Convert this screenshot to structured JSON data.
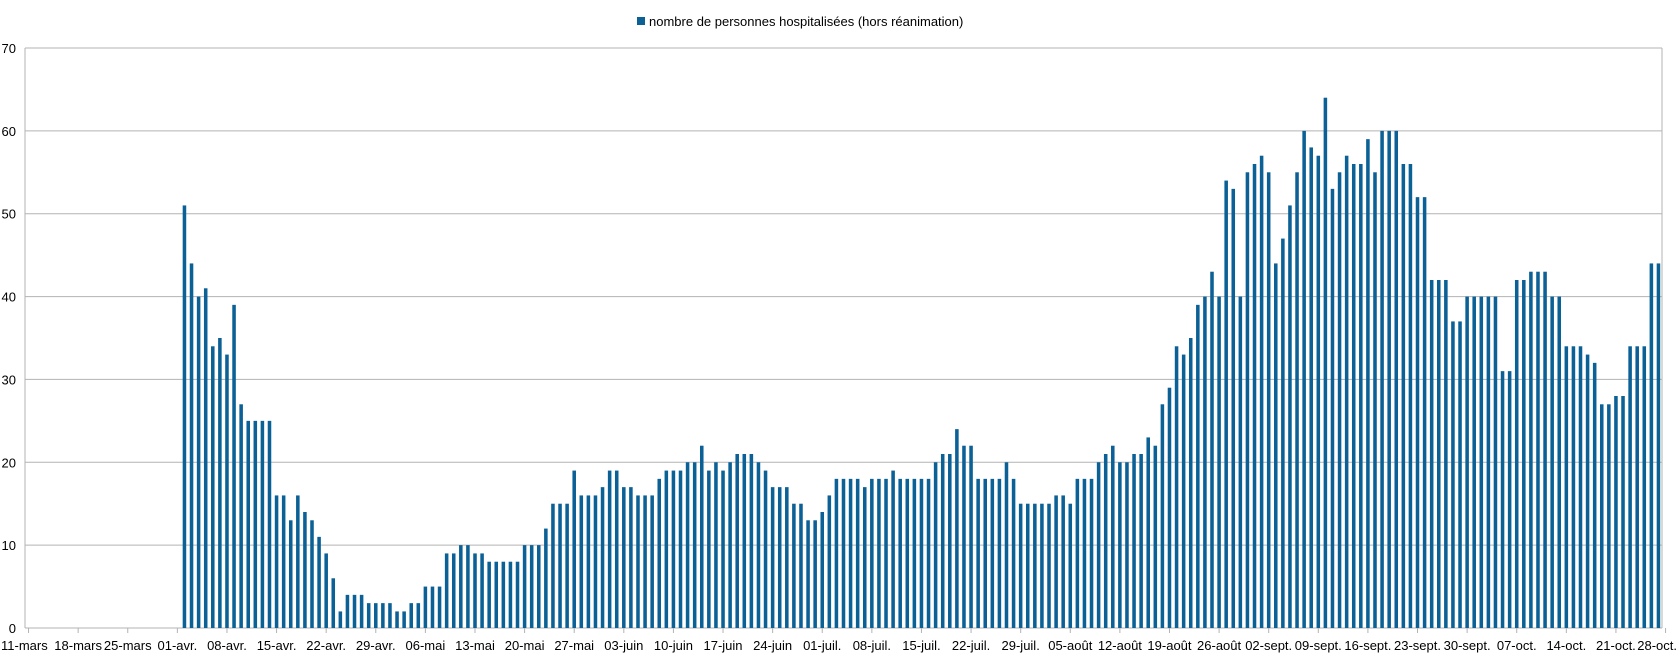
{
  "chart_data": {
    "type": "bar",
    "title": "",
    "xlabel": "",
    "ylabel": "",
    "legend": {
      "position": "top-center"
    },
    "ylim": [
      0,
      70
    ],
    "yticks": [
      0,
      10,
      20,
      30,
      40,
      50,
      60,
      70
    ],
    "grid": true,
    "x_start": "11-mars",
    "x_end": "29-oct.",
    "x_tick_labels": [
      "11-mars",
      "18-mars",
      "25-mars",
      "01-avr.",
      "08-avr.",
      "15-avr.",
      "22-avr.",
      "29-avr.",
      "06-mai",
      "13-mai",
      "20-mai",
      "27-mai",
      "03-juin",
      "10-juin",
      "17-juin",
      "24-juin",
      "01-juil.",
      "08-juil.",
      "15-juil.",
      "22-juil.",
      "29-juil.",
      "05-août",
      "12-août",
      "19-août",
      "26-août",
      "02-sept.",
      "09-sept.",
      "16-sept.",
      "23-sept.",
      "30-sept.",
      "07-oct.",
      "14-oct.",
      "21-oct.",
      "28-oct."
    ],
    "series": [
      {
        "name": "nombre de personnes hospitalisées (hors réanimation)",
        "color": "#0b6096",
        "values": [
          0,
          0,
          0,
          0,
          0,
          0,
          0,
          0,
          0,
          0,
          0,
          0,
          0,
          0,
          0,
          0,
          0,
          0,
          0,
          0,
          0,
          0,
          51,
          44,
          40,
          41,
          34,
          35,
          33,
          39,
          27,
          25,
          25,
          25,
          25,
          16,
          16,
          13,
          16,
          14,
          13,
          11,
          9,
          6,
          2,
          4,
          4,
          4,
          3,
          3,
          3,
          3,
          2,
          2,
          3,
          3,
          5,
          5,
          5,
          9,
          9,
          10,
          10,
          9,
          9,
          8,
          8,
          8,
          8,
          8,
          10,
          10,
          10,
          12,
          15,
          15,
          15,
          19,
          16,
          16,
          16,
          17,
          19,
          19,
          17,
          17,
          16,
          16,
          16,
          18,
          19,
          19,
          19,
          20,
          20,
          22,
          19,
          20,
          19,
          20,
          21,
          21,
          21,
          20,
          19,
          17,
          17,
          17,
          15,
          15,
          13,
          13,
          14,
          16,
          18,
          18,
          18,
          18,
          17,
          18,
          18,
          18,
          19,
          18,
          18,
          18,
          18,
          18,
          20,
          21,
          21,
          24,
          22,
          22,
          18,
          18,
          18,
          18,
          20,
          18,
          15,
          15,
          15,
          15,
          15,
          16,
          16,
          15,
          18,
          18,
          18,
          20,
          21,
          22,
          20,
          20,
          21,
          21,
          23,
          22,
          27,
          29,
          34,
          33,
          35,
          39,
          40,
          43,
          40,
          54,
          53,
          40,
          55,
          56,
          57,
          55,
          44,
          47,
          51,
          55,
          60,
          58,
          57,
          64,
          53,
          55,
          57,
          56,
          56,
          59,
          55,
          60,
          60,
          60,
          56,
          56,
          52,
          52,
          42,
          42,
          42,
          37,
          37,
          40,
          40,
          40,
          40,
          40,
          31,
          31,
          42,
          42,
          43,
          43,
          43,
          40,
          40,
          34,
          34,
          34,
          33,
          32,
          27,
          27,
          28,
          28,
          34,
          34,
          34,
          44,
          44
        ]
      }
    ]
  }
}
